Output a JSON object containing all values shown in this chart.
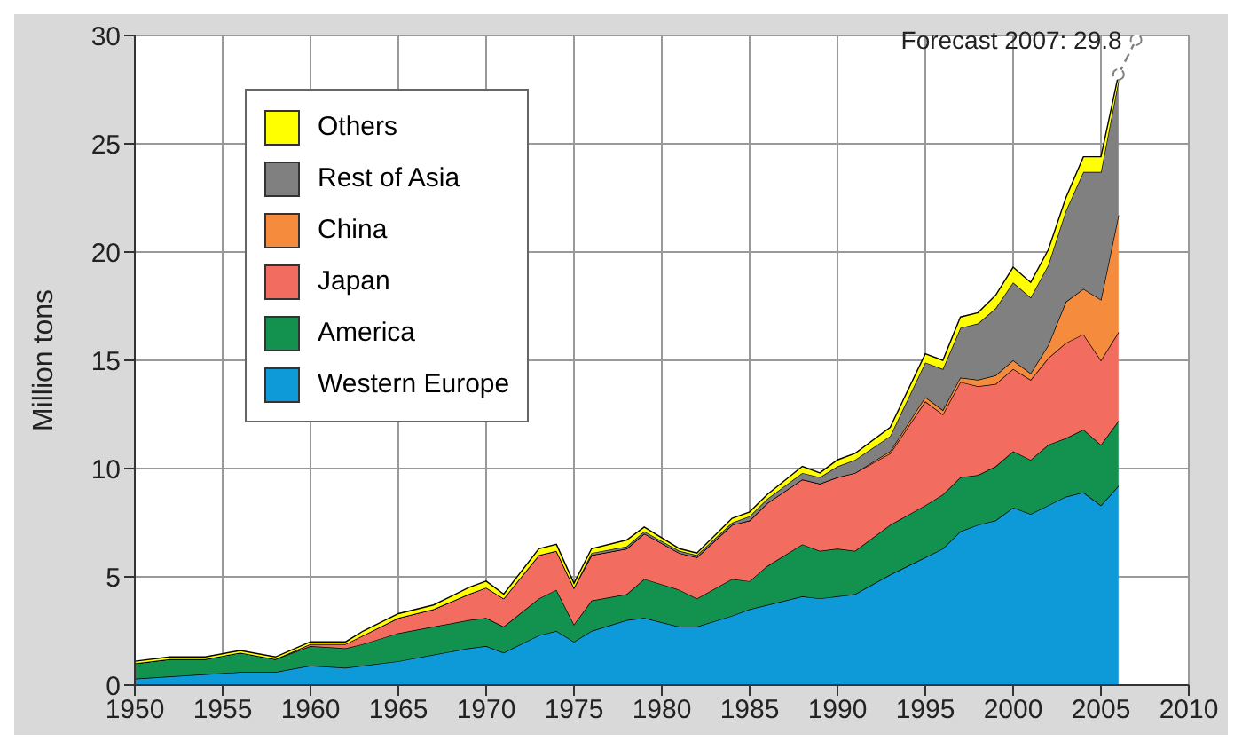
{
  "chart_data": {
    "type": "area",
    "ylabel": "Million tons",
    "stacked": true,
    "grid": true,
    "legend": "top left",
    "xlim": [
      1950,
      2010
    ],
    "xticks": [
      1950,
      1955,
      1960,
      1965,
      1970,
      1975,
      1980,
      1985,
      1990,
      1995,
      2000,
      2005,
      2010
    ],
    "ylim": [
      0,
      30
    ],
    "yticks": [
      0,
      5,
      10,
      15,
      20,
      25,
      30
    ],
    "x": [
      1950,
      1952,
      1954,
      1956,
      1958,
      1960,
      1962,
      1963,
      1965,
      1967,
      1969,
      1970,
      1971,
      1973,
      1974,
      1975,
      1976,
      1978,
      1979,
      1981,
      1982,
      1984,
      1985,
      1986,
      1988,
      1989,
      1990,
      1991,
      1993,
      1995,
      1996,
      1997,
      1998,
      1999,
      2000,
      2001,
      2002,
      2003,
      2004,
      2005,
      2006
    ],
    "series": [
      {
        "name": "Western Europe",
        "color": "#0e9ad8",
        "values": [
          0.3,
          0.4,
          0.5,
          0.6,
          0.6,
          0.9,
          0.8,
          0.9,
          1.1,
          1.4,
          1.7,
          1.8,
          1.5,
          2.3,
          2.5,
          2.0,
          2.5,
          3.0,
          3.1,
          2.7,
          2.7,
          3.2,
          3.5,
          3.7,
          4.1,
          4.0,
          4.1,
          4.2,
          5.1,
          5.9,
          6.3,
          7.1,
          7.4,
          7.6,
          8.2,
          7.9,
          8.3,
          8.7,
          8.9,
          8.3,
          9.2
        ]
      },
      {
        "name": "America",
        "color": "#13914f",
        "values": [
          0.7,
          0.8,
          0.7,
          0.9,
          0.6,
          0.9,
          0.9,
          1.0,
          1.3,
          1.3,
          1.3,
          1.3,
          1.2,
          1.7,
          1.9,
          0.8,
          1.4,
          1.2,
          1.8,
          1.7,
          1.3,
          1.7,
          1.3,
          1.8,
          2.4,
          2.2,
          2.2,
          2.0,
          2.3,
          2.4,
          2.5,
          2.5,
          2.3,
          2.5,
          2.6,
          2.5,
          2.8,
          2.7,
          2.9,
          2.8,
          3.0
        ]
      },
      {
        "name": "Japan",
        "color": "#f26d5f",
        "values": [
          0,
          0,
          0,
          0,
          0,
          0.1,
          0.2,
          0.4,
          0.7,
          0.8,
          1.2,
          1.4,
          1.3,
          2.0,
          1.8,
          1.7,
          2.1,
          2.1,
          2.1,
          1.7,
          1.9,
          2.5,
          2.8,
          2.9,
          3.0,
          3.1,
          3.3,
          3.6,
          3.3,
          4.8,
          3.7,
          4.4,
          4.1,
          3.8,
          3.8,
          3.7,
          4.0,
          4.4,
          4.4,
          3.9,
          4.1
        ]
      },
      {
        "name": "China",
        "color": "#f58b3c",
        "values": [
          0,
          0,
          0,
          0,
          0,
          0,
          0,
          0,
          0,
          0,
          0,
          0,
          0,
          0,
          0,
          0,
          0,
          0,
          0,
          0,
          0,
          0,
          0,
          0,
          0,
          0,
          0,
          0,
          0.1,
          0.2,
          0.2,
          0.2,
          0.3,
          0.4,
          0.4,
          0.3,
          0.6,
          1.9,
          2.1,
          2.8,
          5.4
        ]
      },
      {
        "name": "Rest of Asia",
        "color": "#808080",
        "values": [
          0,
          0,
          0,
          0,
          0,
          0,
          0,
          0,
          0,
          0,
          0,
          0,
          0,
          0,
          0,
          0,
          0.1,
          0.1,
          0.1,
          0.1,
          0.1,
          0.1,
          0.2,
          0.2,
          0.3,
          0.3,
          0.5,
          0.6,
          0.7,
          1.6,
          1.9,
          2.3,
          2.6,
          3.1,
          3.6,
          3.5,
          3.7,
          4.2,
          5.4,
          5.9,
          6.2
        ]
      },
      {
        "name": "Others",
        "color": "#ffff00",
        "values": [
          0.1,
          0.1,
          0.1,
          0.1,
          0.1,
          0.1,
          0.1,
          0.2,
          0.2,
          0.2,
          0.3,
          0.3,
          0.2,
          0.3,
          0.3,
          0.2,
          0.2,
          0.3,
          0.2,
          0.1,
          0.1,
          0.2,
          0.2,
          0.2,
          0.3,
          0.2,
          0.3,
          0.3,
          0.4,
          0.4,
          0.4,
          0.5,
          0.5,
          0.6,
          0.7,
          0.7,
          0.7,
          0.6,
          0.7,
          0.7,
          0.3
        ]
      },
      {
        "type": "line",
        "color": "#808080",
        "line_style": "dashed",
        "marker": "circle",
        "x": [
          2006,
          2007
        ],
        "values": [
          28.2,
          29.8
        ]
      }
    ],
    "annotations": [
      {
        "text": "Forecast 2007: 29.8",
        "x": 2007,
        "y": 29.8
      }
    ]
  }
}
